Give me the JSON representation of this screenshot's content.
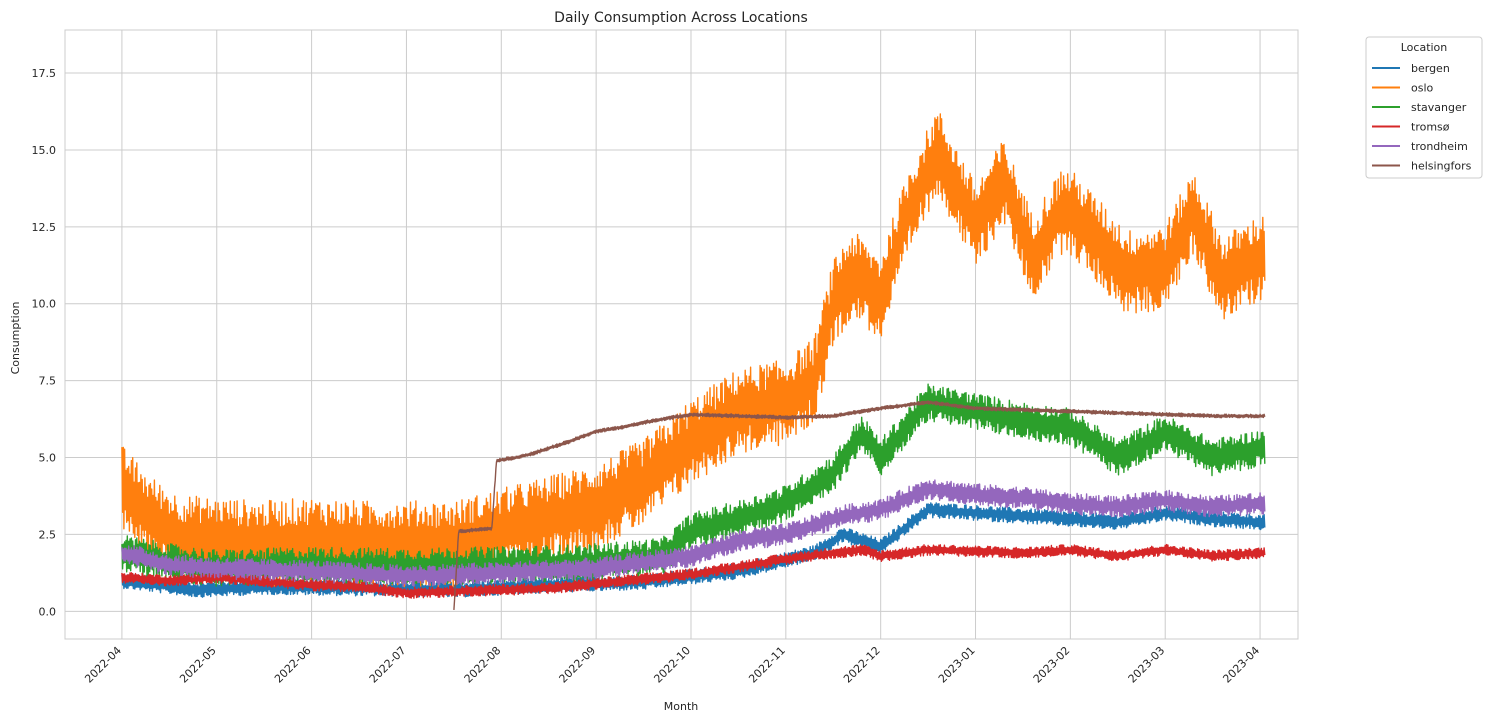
{
  "chart_data": {
    "type": "line",
    "title": "Daily Consumption Across Locations",
    "xlabel": "Month",
    "ylabel": "Consumption",
    "grid": true,
    "ylim": [
      -0.9,
      18.9
    ],
    "xlim_months": [
      -0.6,
      12.4
    ],
    "x_tick_labels": [
      "2022-04",
      "2022-05",
      "2022-06",
      "2022-07",
      "2022-08",
      "2022-09",
      "2022-10",
      "2022-11",
      "2022-12",
      "2023-01",
      "2023-02",
      "2023-03",
      "2023-04"
    ],
    "y_ticks": [
      0,
      2.5,
      5,
      7.5,
      10,
      12.5,
      15,
      17.5
    ],
    "y_tick_labels": [
      "0.0",
      "2.5",
      "5.0",
      "7.5",
      "10.0",
      "12.5",
      "15.0",
      "17.5"
    ],
    "legend": {
      "title": "Location",
      "placement": "outside upper right"
    },
    "x_unit": "months since 2022-04-01",
    "series": [
      {
        "name": "bergen",
        "color": "#1f77b4",
        "amplitude": 0.25,
        "x": [
          0,
          0.8,
          1.5,
          2.5,
          3.5,
          4.5,
          5.5,
          6.5,
          7.3,
          7.6,
          8,
          8.5,
          9,
          9.5,
          10,
          10.5,
          11,
          11.5,
          12
        ],
        "y": [
          1.0,
          0.7,
          0.8,
          0.75,
          0.7,
          0.85,
          0.95,
          1.3,
          1.9,
          2.5,
          2.1,
          3.3,
          3.2,
          3.1,
          3.0,
          2.9,
          3.2,
          3.0,
          2.9
        ]
      },
      {
        "name": "oslo",
        "color": "#ff7f0e",
        "amplitude": 1.4,
        "x": [
          0,
          0.3,
          0.6,
          1,
          1.5,
          2,
          2.5,
          3,
          3.5,
          4,
          4.5,
          5,
          5.5,
          6,
          6.5,
          7,
          7.3,
          7.5,
          7.7,
          8,
          8.3,
          8.6,
          9,
          9.3,
          9.6,
          9.9,
          10,
          10.3,
          10.6,
          11,
          11.3,
          11.6,
          12
        ],
        "y": [
          4.0,
          3.0,
          2.4,
          2.3,
          2.2,
          2.3,
          2.2,
          2.2,
          2.2,
          2.6,
          3.0,
          3.4,
          4.2,
          5.5,
          6.5,
          6.8,
          7.5,
          10.0,
          11.0,
          10.2,
          13.0,
          15.0,
          12.5,
          14.0,
          11.5,
          13.0,
          13.0,
          12.0,
          11.0,
          11.2,
          13.0,
          10.8,
          11.5
        ]
      },
      {
        "name": "stavanger",
        "color": "#2ca02c",
        "amplitude": 0.6,
        "x": [
          0,
          0.5,
          1,
          2,
          3,
          4,
          5,
          5.7,
          6,
          6.5,
          7,
          7.5,
          7.8,
          8,
          8.5,
          9,
          9.5,
          10,
          10.5,
          11,
          11.5,
          12
        ],
        "y": [
          1.9,
          1.6,
          1.4,
          1.5,
          1.45,
          1.5,
          1.6,
          1.8,
          2.6,
          3.0,
          3.5,
          4.5,
          5.8,
          5.0,
          6.8,
          6.5,
          6.2,
          6.0,
          5.0,
          5.8,
          5.0,
          5.3
        ]
      },
      {
        "name": "tromsø",
        "color": "#d62728",
        "amplitude": 0.18,
        "x": [
          0,
          0.5,
          1,
          2,
          2.5,
          3,
          3.5,
          4,
          4.5,
          5,
          6,
          7,
          7.5,
          7.8,
          8,
          8.5,
          9,
          9.5,
          10,
          10.5,
          11,
          11.5,
          12
        ],
        "y": [
          1.1,
          1.0,
          1.1,
          0.85,
          0.8,
          0.6,
          0.65,
          0.7,
          0.75,
          0.9,
          1.2,
          1.7,
          1.9,
          2.0,
          1.8,
          2.0,
          1.95,
          1.9,
          2.0,
          1.8,
          2.0,
          1.8,
          1.9
        ]
      },
      {
        "name": "trondheim",
        "color": "#9467bd",
        "amplitude": 0.35,
        "x": [
          0,
          0.5,
          1,
          2,
          3,
          3.5,
          4,
          5,
          6,
          6.5,
          7,
          7.3,
          7.6,
          8,
          8.5,
          9,
          9.5,
          10,
          10.5,
          11,
          11.5,
          12
        ],
        "y": [
          1.9,
          1.5,
          1.4,
          1.3,
          1.15,
          1.2,
          1.25,
          1.4,
          1.8,
          2.3,
          2.5,
          2.8,
          3.1,
          3.3,
          4.0,
          3.8,
          3.7,
          3.5,
          3.4,
          3.6,
          3.4,
          3.5
        ]
      },
      {
        "name": "helsingfors",
        "color": "#8c564b",
        "amplitude": 0.06,
        "x": [
          3.5,
          3.55,
          3.9,
          3.95,
          4.15,
          4.3,
          4.7,
          5.0,
          5.3,
          5.6,
          6.0,
          6.5,
          7.0,
          7.5,
          8.0,
          8.5,
          9.0,
          9.5,
          10.0,
          10.5,
          11.0,
          11.5,
          12.0
        ],
        "y": [
          0.0,
          2.6,
          2.7,
          4.9,
          5.0,
          5.1,
          5.5,
          5.85,
          6.0,
          6.2,
          6.4,
          6.35,
          6.3,
          6.35,
          6.6,
          6.8,
          6.6,
          6.55,
          6.5,
          6.45,
          6.4,
          6.35,
          6.35
        ]
      }
    ]
  }
}
